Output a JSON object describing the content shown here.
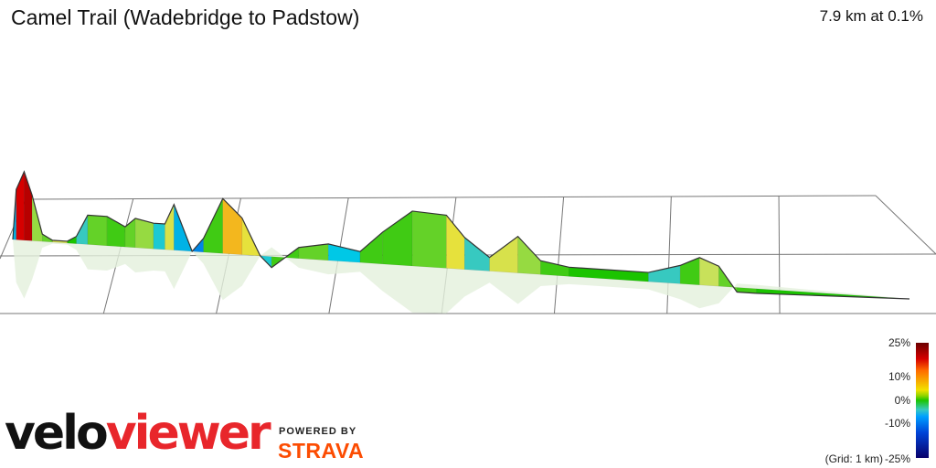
{
  "header": {
    "title": "Camel Trail (Wadebridge to Padstow)",
    "summary": "7.9 km at 0.1%"
  },
  "legend": {
    "labels": [
      "25%",
      "10%",
      "0%",
      "-10%",
      "-25%"
    ],
    "grid_note": "(Grid: 1 km)"
  },
  "branding": {
    "velo": "velo",
    "viewer": "viewer",
    "powered_by": "POWERED BY",
    "strava": "STRAVA"
  },
  "colors": {
    "brand_red": "#e8262b",
    "strava_orange": "#fc4c02"
  },
  "chart_data": {
    "type": "area",
    "title": "Camel Trail (Wadebridge to Padstow)",
    "distance_km": 7.9,
    "average_gradient_percent": 0.1,
    "grid_spacing_km": 1,
    "gradient_scale_percent": [
      -25,
      25
    ],
    "profile": [
      {
        "km": 0.0,
        "elev": 0,
        "grad": -8
      },
      {
        "km": 0.03,
        "elev": 55,
        "grad": -6
      },
      {
        "km": 0.1,
        "elev": 75,
        "grad": 18
      },
      {
        "km": 0.17,
        "elev": 50,
        "grad": 20
      },
      {
        "km": 0.26,
        "elev": 8,
        "grad": 3
      },
      {
        "km": 0.35,
        "elev": 2,
        "grad": 2
      },
      {
        "km": 0.48,
        "elev": 2,
        "grad": 5
      },
      {
        "km": 0.56,
        "elev": 8,
        "grad": 0
      },
      {
        "km": 0.66,
        "elev": 32,
        "grad": -3
      },
      {
        "km": 0.83,
        "elev": 32,
        "grad": 2
      },
      {
        "km": 0.99,
        "elev": 22,
        "grad": 1
      },
      {
        "km": 1.08,
        "elev": 32,
        "grad": 2
      },
      {
        "km": 1.24,
        "elev": 28,
        "grad": 3
      },
      {
        "km": 1.34,
        "elev": 28,
        "grad": -4
      },
      {
        "km": 1.42,
        "elev": 50,
        "grad": 5
      },
      {
        "km": 1.58,
        "elev": 0,
        "grad": -6
      },
      {
        "km": 1.68,
        "elev": 15,
        "grad": -8
      },
      {
        "km": 1.85,
        "elev": 60,
        "grad": 1
      },
      {
        "km": 2.02,
        "elev": 40,
        "grad": 8
      },
      {
        "km": 2.18,
        "elev": 0,
        "grad": 6
      },
      {
        "km": 2.28,
        "elev": -12,
        "grad": -4
      },
      {
        "km": 2.52,
        "elev": 12,
        "grad": 1
      },
      {
        "km": 2.78,
        "elev": 18,
        "grad": 2
      },
      {
        "km": 3.06,
        "elev": 12,
        "grad": -5
      },
      {
        "km": 3.26,
        "elev": 35,
        "grad": 1
      },
      {
        "km": 3.52,
        "elev": 60,
        "grad": 1
      },
      {
        "km": 3.82,
        "elev": 58,
        "grad": 2
      },
      {
        "km": 3.98,
        "elev": 35,
        "grad": 6
      },
      {
        "km": 4.2,
        "elev": 15,
        "grad": -3
      },
      {
        "km": 4.45,
        "elev": 40,
        "grad": 5
      },
      {
        "km": 4.65,
        "elev": 15,
        "grad": 3
      },
      {
        "km": 4.9,
        "elev": 10,
        "grad": 1
      },
      {
        "km": 5.6,
        "elev": 10,
        "grad": 0
      },
      {
        "km": 5.88,
        "elev": 20,
        "grad": -3
      },
      {
        "km": 6.05,
        "elev": 30,
        "grad": 1
      },
      {
        "km": 6.22,
        "elev": 22,
        "grad": 4
      },
      {
        "km": 6.38,
        "elev": -5,
        "grad": 2
      },
      {
        "km": 6.55,
        "elev": -5,
        "grad": 1
      },
      {
        "km": 7.9,
        "elev": 0,
        "grad": 0
      }
    ]
  }
}
